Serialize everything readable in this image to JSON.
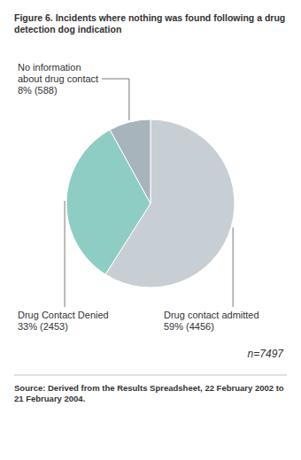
{
  "chart_data": {
    "type": "pie",
    "title": "Figure 6. Incidents where nothing was found following a drug\ndetection dog indication",
    "categories": [
      "Drug contact admitted\n59% (4456)",
      "Drug Contact Denied\n33% (2453)",
      "No information\nabout drug contact\n8% (588)"
    ],
    "values": [
      59,
      33,
      8
    ],
    "colors": [
      "#c8cfd4",
      "#8ecdc4",
      "#a8b4bc"
    ],
    "annotations": [
      "n=7497",
      "Source: Derived from the Results Spreadsheet, 22 February 2002 to\n21 February 2004."
    ]
  }
}
